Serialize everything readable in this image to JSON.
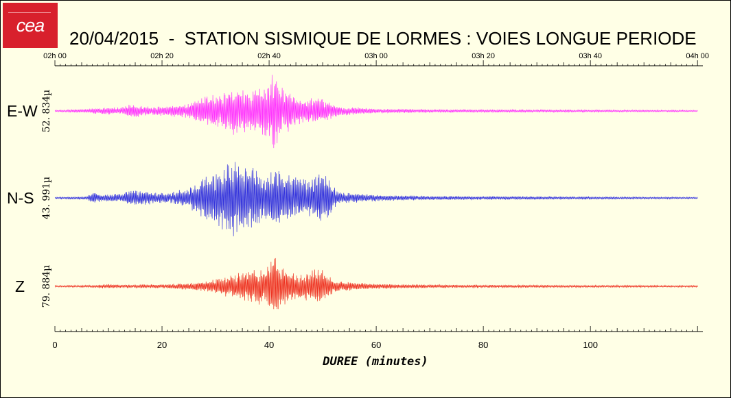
{
  "logo": {
    "text": "cea",
    "color": "#d8202c"
  },
  "title": "20/04/2015  -  STATION SISMIQUE DE LORMES : VOIES LONGUE PERIODE",
  "chart_data": {
    "type": "line",
    "title": "20/04/2015  -  STATION SISMIQUE DE LORMES : VOIES LONGUE PERIODE",
    "xlabel": "DUREE (minutes)",
    "xlim": [
      0,
      121
    ],
    "x_ticks": [
      0,
      20,
      40,
      60,
      80,
      100
    ],
    "time_axis_ticks": [
      {
        "minute": 0,
        "label": "02h 00"
      },
      {
        "minute": 20,
        "label": "02h 20"
      },
      {
        "minute": 40,
        "label": "02h 40"
      },
      {
        "minute": 60,
        "label": "03h 00"
      },
      {
        "minute": 80,
        "label": "03h 20"
      },
      {
        "minute": 100,
        "label": "03h 40"
      },
      {
        "minute": 120,
        "label": "04h 00"
      }
    ],
    "grid": false,
    "series": [
      {
        "name": "E-W",
        "amplitude_label": "52. 834µ",
        "color": "#ff33ff",
        "envelope": [
          [
            0,
            0.02
          ],
          [
            6,
            0.05
          ],
          [
            8,
            0.08
          ],
          [
            13,
            0.1
          ],
          [
            14,
            0.2
          ],
          [
            18,
            0.1
          ],
          [
            22,
            0.15
          ],
          [
            25,
            0.2
          ],
          [
            27,
            0.35
          ],
          [
            30,
            0.4
          ],
          [
            32,
            0.5
          ],
          [
            33.5,
            0.6
          ],
          [
            35,
            0.55
          ],
          [
            38,
            0.6
          ],
          [
            40,
            0.75
          ],
          [
            41,
            1.0
          ],
          [
            42,
            0.65
          ],
          [
            44,
            0.5
          ],
          [
            46,
            0.3
          ],
          [
            49,
            0.35
          ],
          [
            51,
            0.25
          ],
          [
            53,
            0.12
          ],
          [
            56,
            0.1
          ],
          [
            60,
            0.06
          ],
          [
            70,
            0.04
          ],
          [
            120,
            0.02
          ]
        ]
      },
      {
        "name": "N-S",
        "amplitude_label": "43. 991µ",
        "color": "#3333dd",
        "envelope": [
          [
            0,
            0.02
          ],
          [
            6,
            0.04
          ],
          [
            7,
            0.15
          ],
          [
            9,
            0.08
          ],
          [
            13,
            0.12
          ],
          [
            14,
            0.2
          ],
          [
            20,
            0.12
          ],
          [
            22,
            0.15
          ],
          [
            25,
            0.25
          ],
          [
            28,
            0.5
          ],
          [
            31,
            0.7
          ],
          [
            33,
            1.0
          ],
          [
            35,
            0.8
          ],
          [
            37,
            0.75
          ],
          [
            39,
            0.6
          ],
          [
            41,
            0.7
          ],
          [
            44,
            0.6
          ],
          [
            46,
            0.5
          ],
          [
            48,
            0.45
          ],
          [
            50,
            0.65
          ],
          [
            51,
            0.45
          ],
          [
            53,
            0.15
          ],
          [
            57,
            0.1
          ],
          [
            62,
            0.07
          ],
          [
            70,
            0.05
          ],
          [
            120,
            0.02
          ]
        ]
      },
      {
        "name": "Z",
        "amplitude_label": "79. 884µ",
        "color": "#ee3322",
        "envelope": [
          [
            0,
            0.02
          ],
          [
            8,
            0.03
          ],
          [
            9,
            0.06
          ],
          [
            12,
            0.04
          ],
          [
            20,
            0.05
          ],
          [
            25,
            0.08
          ],
          [
            28,
            0.12
          ],
          [
            31,
            0.2
          ],
          [
            33,
            0.3
          ],
          [
            36,
            0.35
          ],
          [
            38,
            0.45
          ],
          [
            39.5,
            0.4
          ],
          [
            40.5,
            0.7
          ],
          [
            41,
            1.0
          ],
          [
            42,
            0.55
          ],
          [
            44,
            0.35
          ],
          [
            46,
            0.3
          ],
          [
            48,
            0.4
          ],
          [
            50,
            0.38
          ],
          [
            52,
            0.15
          ],
          [
            56,
            0.09
          ],
          [
            60,
            0.06
          ],
          [
            70,
            0.04
          ],
          [
            120,
            0.02
          ]
        ]
      }
    ]
  }
}
